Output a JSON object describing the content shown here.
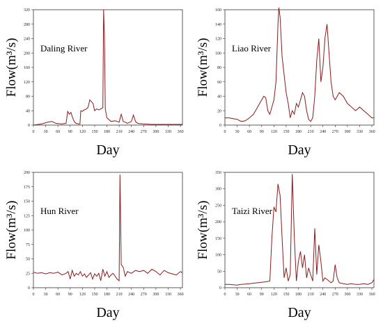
{
  "chart_data": [
    {
      "type": "line",
      "title": "Daling River",
      "xlabel": "Day",
      "ylabel": "Flow(m³/s)",
      "xlim": [
        0,
        365
      ],
      "ylim": [
        0,
        320
      ],
      "xticks": [
        0,
        30,
        60,
        90,
        120,
        150,
        180,
        210,
        240,
        270,
        300,
        330,
        360
      ],
      "yticks": [
        0,
        40,
        80,
        120,
        160,
        200,
        240,
        280,
        320
      ],
      "color": "#8b1a1a",
      "x": [
        0,
        20,
        35,
        45,
        55,
        70,
        80,
        84,
        88,
        92,
        96,
        100,
        104,
        110,
        114,
        116,
        120,
        124,
        130,
        134,
        138,
        142,
        146,
        150,
        155,
        160,
        165,
        170,
        172,
        174,
        176,
        180,
        190,
        200,
        210,
        215,
        220,
        225,
        230,
        240,
        245,
        250,
        255,
        260,
        270,
        290,
        320,
        350,
        365
      ],
      "y": [
        0,
        3,
        8,
        10,
        5,
        3,
        5,
        38,
        30,
        35,
        20,
        10,
        5,
        3,
        3,
        40,
        38,
        42,
        45,
        50,
        70,
        65,
        60,
        40,
        45,
        42,
        45,
        48,
        320,
        250,
        45,
        20,
        10,
        12,
        8,
        30,
        10,
        8,
        5,
        10,
        28,
        10,
        5,
        4,
        3,
        2,
        2,
        2,
        2
      ]
    },
    {
      "type": "line",
      "title": "Liao River",
      "xlabel": "Day",
      "ylabel": "Flow(m³/s)",
      "xlim": [
        0,
        365
      ],
      "ylim": [
        0,
        160
      ],
      "xticks": [
        0,
        30,
        60,
        90,
        120,
        150,
        180,
        210,
        240,
        270,
        300,
        330,
        360
      ],
      "yticks": [
        0,
        20,
        40,
        60,
        80,
        100,
        120,
        140,
        160
      ],
      "color": "#8b1a1a",
      "x": [
        0,
        10,
        20,
        30,
        40,
        50,
        60,
        70,
        80,
        90,
        95,
        100,
        105,
        110,
        115,
        120,
        125,
        130,
        132,
        135,
        140,
        145,
        150,
        155,
        160,
        165,
        170,
        175,
        180,
        185,
        190,
        195,
        200,
        205,
        210,
        215,
        220,
        225,
        230,
        235,
        240,
        245,
        250,
        255,
        260,
        265,
        270,
        280,
        290,
        300,
        310,
        320,
        330,
        340,
        350,
        360,
        365
      ],
      "y": [
        10,
        10,
        9,
        8,
        5,
        6,
        10,
        15,
        25,
        35,
        40,
        38,
        20,
        15,
        25,
        35,
        60,
        140,
        163,
        150,
        95,
        70,
        45,
        30,
        10,
        20,
        15,
        30,
        25,
        35,
        45,
        40,
        20,
        8,
        5,
        10,
        40,
        90,
        120,
        60,
        80,
        120,
        140,
        100,
        60,
        40,
        35,
        45,
        40,
        30,
        25,
        20,
        25,
        20,
        15,
        10,
        10
      ]
    },
    {
      "type": "line",
      "title": "Hun River",
      "xlabel": "Day",
      "ylabel": "Flow(m³/s)",
      "xlim": [
        0,
        365
      ],
      "ylim": [
        0,
        200
      ],
      "xticks": [
        0,
        30,
        60,
        90,
        120,
        150,
        180,
        210,
        240,
        270,
        300,
        330,
        360
      ],
      "yticks": [
        0,
        25,
        50,
        75,
        100,
        125,
        150,
        175,
        200
      ],
      "color": "#8b1a1a",
      "x": [
        0,
        10,
        20,
        30,
        40,
        50,
        60,
        70,
        80,
        85,
        90,
        95,
        100,
        105,
        110,
        115,
        120,
        125,
        130,
        135,
        140,
        145,
        150,
        155,
        160,
        165,
        170,
        175,
        180,
        185,
        190,
        195,
        200,
        205,
        210,
        212,
        215,
        220,
        225,
        230,
        240,
        250,
        260,
        270,
        280,
        290,
        300,
        310,
        320,
        330,
        340,
        350,
        360,
        365
      ],
      "y": [
        27,
        25,
        26,
        24,
        26,
        25,
        27,
        22,
        25,
        28,
        15,
        30,
        20,
        25,
        22,
        28,
        20,
        24,
        18,
        22,
        26,
        15,
        24,
        20,
        25,
        12,
        32,
        20,
        28,
        18,
        22,
        25,
        20,
        15,
        12,
        196,
        40,
        35,
        20,
        28,
        25,
        30,
        28,
        30,
        25,
        32,
        28,
        22,
        30,
        26,
        24,
        22,
        28,
        26
      ]
    },
    {
      "type": "line",
      "title": "Taizi River",
      "xlabel": "Day",
      "ylabel": "Flow(m³/s)",
      "xlim": [
        0,
        365
      ],
      "ylim": [
        0,
        350
      ],
      "xticks": [
        0,
        30,
        60,
        90,
        120,
        150,
        180,
        210,
        240,
        270,
        300,
        330,
        360
      ],
      "yticks": [
        0,
        50,
        100,
        150,
        200,
        250,
        300,
        350
      ],
      "color": "#8b1a1a",
      "x": [
        0,
        10,
        20,
        30,
        40,
        60,
        80,
        100,
        110,
        115,
        120,
        125,
        130,
        135,
        140,
        145,
        150,
        155,
        160,
        165,
        170,
        175,
        180,
        185,
        190,
        195,
        200,
        205,
        210,
        215,
        220,
        225,
        230,
        235,
        240,
        245,
        250,
        255,
        260,
        265,
        270,
        275,
        280,
        290,
        300,
        310,
        320,
        330,
        340,
        350,
        360,
        365
      ],
      "y": [
        10,
        10,
        9,
        8,
        10,
        12,
        15,
        18,
        20,
        150,
        245,
        230,
        315,
        280,
        150,
        30,
        60,
        20,
        40,
        345,
        150,
        20,
        80,
        110,
        60,
        100,
        30,
        60,
        40,
        20,
        180,
        40,
        130,
        80,
        20,
        30,
        25,
        20,
        15,
        20,
        70,
        30,
        15,
        12,
        10,
        12,
        10,
        10,
        12,
        10,
        15,
        25
      ]
    }
  ]
}
